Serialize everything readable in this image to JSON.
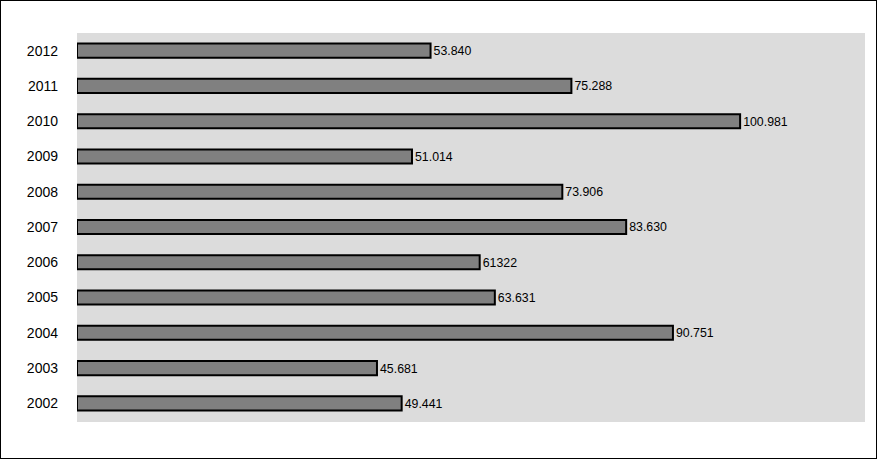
{
  "chart_data": {
    "type": "bar",
    "orientation": "horizontal",
    "categories": [
      "2002",
      "2003",
      "2004",
      "2005",
      "2006",
      "2007",
      "2008",
      "2009",
      "2010",
      "2011",
      "2012"
    ],
    "values": [
      49441,
      45681,
      90751,
      63631,
      61322,
      83630,
      73906,
      51014,
      100981,
      75288,
      53840
    ],
    "value_labels": [
      "49.441",
      "45.681",
      "90.751",
      "63.631",
      "61322",
      "83.630",
      "73.906",
      "51.014",
      "100.981",
      "75.288",
      "53.840"
    ],
    "color": "#808080",
    "xlim": [
      0,
      120000
    ],
    "data_labels": true,
    "tick_labels": "y",
    "grid": false
  }
}
